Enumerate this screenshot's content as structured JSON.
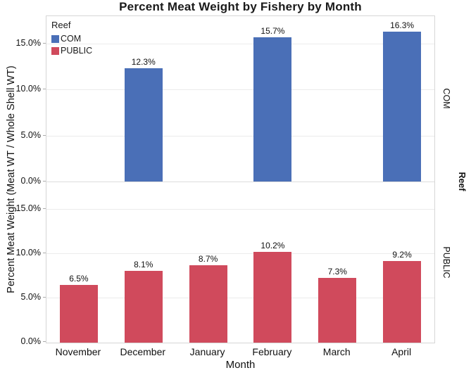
{
  "chart_data": {
    "type": "bar",
    "title": "Percent Meat Weight by Fishery by Month",
    "xlabel": "Month",
    "ylabel": "Percent Meat Weight (Meat WT / Whole Shell WT)",
    "facet": {
      "variable": "Reef",
      "panels": [
        "COM",
        "PUBLIC"
      ]
    },
    "categories": [
      "November",
      "December",
      "January",
      "February",
      "March",
      "April"
    ],
    "series": [
      {
        "name": "COM",
        "color": "#4a6fb7",
        "values": [
          null,
          12.3,
          null,
          15.7,
          null,
          16.3
        ]
      },
      {
        "name": "PUBLIC",
        "color": "#d04a5c",
        "values": [
          6.5,
          8.1,
          8.7,
          10.2,
          7.3,
          9.2
        ]
      }
    ],
    "value_labels": {
      "COM": [
        "",
        "12.3%",
        "",
        "15.7%",
        "",
        "16.3%"
      ],
      "PUBLIC": [
        "6.5%",
        "8.1%",
        "8.7%",
        "10.2%",
        "7.3%",
        "9.2%"
      ]
    },
    "ylim": [
      0,
      18
    ],
    "yticks": [
      0,
      5,
      10,
      15
    ],
    "ytick_labels": [
      "0.0%",
      "5.0%",
      "10.0%",
      "15.0%"
    ],
    "grid": true,
    "legend": {
      "title": "Reef",
      "position": "top-left",
      "entries": [
        {
          "label": "COM",
          "color": "#4a6fb7"
        },
        {
          "label": "PUBLIC",
          "color": "#d04a5c"
        }
      ]
    }
  },
  "colors": {
    "background": "#ffffff",
    "gridline": "#ebebeb",
    "panel_border": "#d6d6d6",
    "text": "#111111"
  }
}
